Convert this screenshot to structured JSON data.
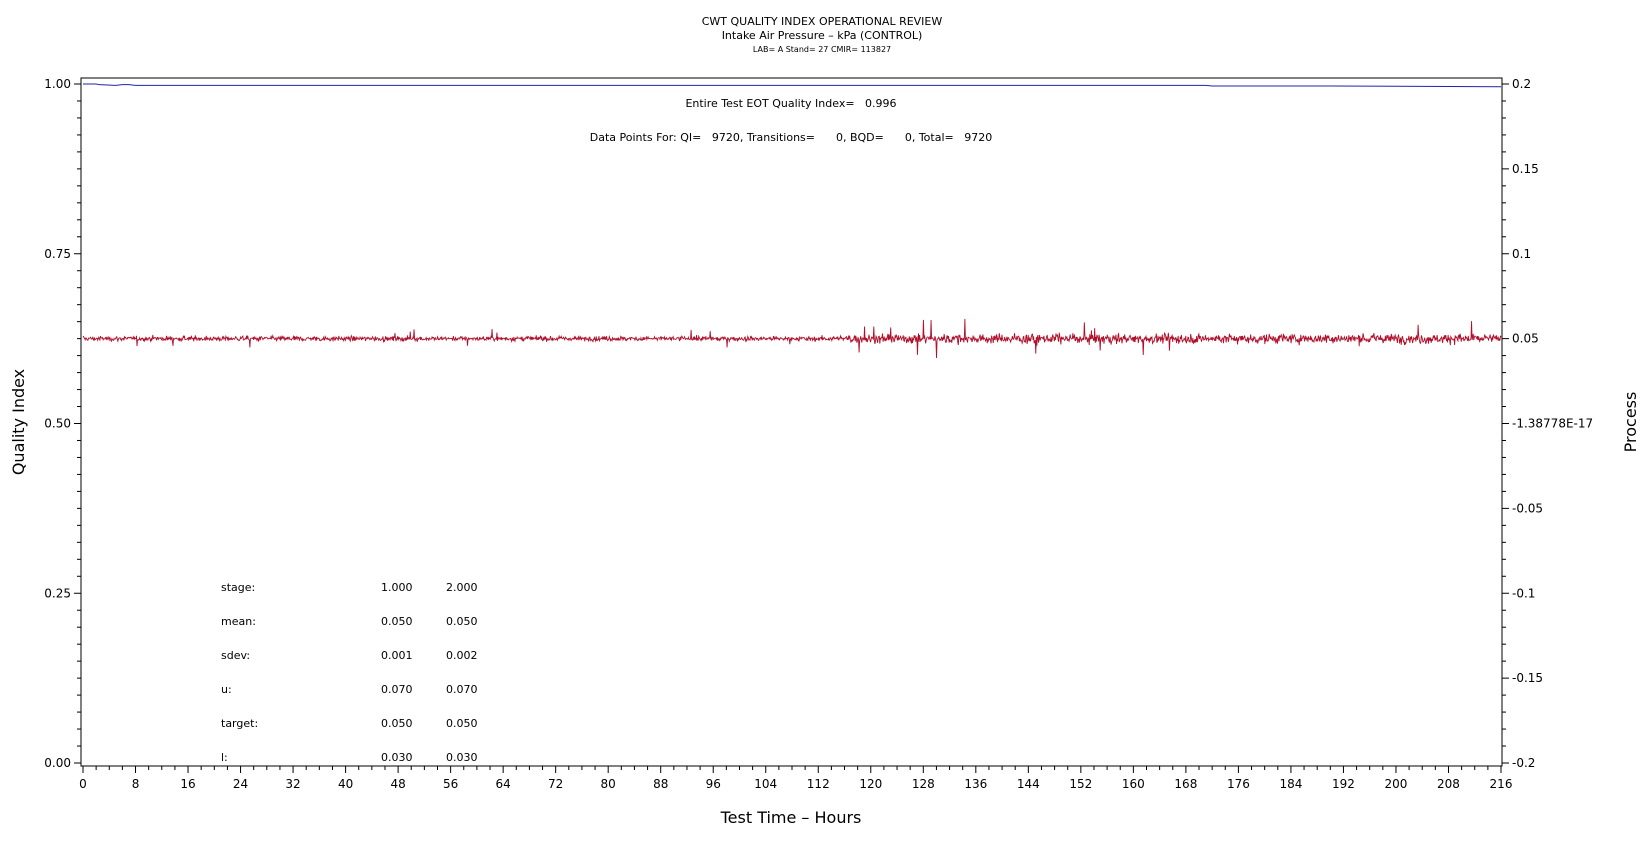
{
  "chart_data": {
    "type": "line",
    "title": "CWT QUALITY INDEX OPERATIONAL REVIEW",
    "subtitle": "Intake Air Pressure – kPa (CONTROL)",
    "info_line": "LAB= A Stand= 27 CMIR= 113827",
    "xlabel": "Test Time – Hours",
    "ylabel_left": "Quality Index",
    "ylabel_right": "Process",
    "xlim": [
      0,
      216
    ],
    "ylim_left": [
      0.0,
      1.0
    ],
    "ylim_right": [
      -0.2,
      0.2
    ],
    "x_ticks": [
      "0",
      "8",
      "16",
      "24",
      "32",
      "40",
      "48",
      "56",
      "64",
      "72",
      "80",
      "88",
      "96",
      "104",
      "112",
      "120",
      "128",
      "136",
      "144",
      "152",
      "160",
      "168",
      "176",
      "184",
      "192",
      "200",
      "208",
      "216"
    ],
    "y_left_ticks": [
      "0.00",
      "0.25",
      "0.50",
      "0.75",
      "1.00"
    ],
    "y_right_ticks": [
      "-0.2",
      "-0.15",
      "-0.1",
      "-0.05",
      "-1.38778E-17",
      "0.05",
      "0.1",
      "0.15",
      "0.2"
    ],
    "grid": false,
    "annotations": [
      "Entire Test EOT Quality Index=   0.996",
      "Data Points For: QI=   9720, Transitions=      0, BQD=      0, Total=   9720"
    ],
    "series": [
      {
        "axis": "left",
        "color": "#1f24a8",
        "x": [
          0,
          2,
          2.5,
          5,
          6,
          7,
          8,
          30,
          60,
          90,
          120,
          150,
          171,
          172,
          190,
          216
        ],
        "values": [
          1.0,
          1.0,
          0.999,
          0.998,
          0.999,
          0.999,
          0.998,
          0.998,
          0.998,
          0.998,
          0.998,
          0.998,
          0.998,
          0.997,
          0.997,
          0.996
        ]
      },
      {
        "axis": "right",
        "color": "#b0102a",
        "x_start": 0,
        "x_end": 216,
        "center": 0.05,
        "sdev_by_stage": [
          0.001,
          0.002
        ],
        "stage_break_hours": 116,
        "points": 9720
      }
    ],
    "stats_table": {
      "rows": [
        {
          "label": "stage:",
          "v1": "1.000",
          "v2": "2.000"
        },
        {
          "label": "mean:",
          "v1": "0.050",
          "v2": "0.050"
        },
        {
          "label": "sdev:",
          "v1": "0.001",
          "v2": "0.002"
        },
        {
          "label": "u:",
          "v1": "0.070",
          "v2": "0.070"
        },
        {
          "label": "target:",
          "v1": "0.050",
          "v2": "0.050"
        },
        {
          "label": "l:",
          "v1": "0.030",
          "v2": "0.030"
        }
      ]
    }
  }
}
